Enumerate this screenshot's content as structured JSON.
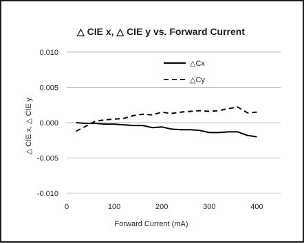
{
  "chart_data": {
    "type": "line",
    "title": "△ CIE x, △ CIE y vs. Forward Current",
    "xlabel": "Forward Current (mA)",
    "ylabel": "△ CIE x, △ CIE y",
    "xlim": [
      0,
      450
    ],
    "ylim": [
      -0.01,
      0.01
    ],
    "x_ticks": [
      0,
      100,
      200,
      300,
      400
    ],
    "x_tick_labels": [
      "0",
      "100",
      "200",
      "300",
      "400"
    ],
    "y_ticks": [
      0.01,
      0.005,
      0.0,
      -0.005,
      -0.01
    ],
    "y_tick_labels": [
      "0.010",
      "0.005",
      "0.000",
      "-0.005",
      "-0.010"
    ],
    "grid": "horizontal",
    "legend_position": "top-right",
    "colors": {
      "series": "#000000",
      "grid": "#bfbfbf",
      "border": "#1a1a1a"
    },
    "series": [
      {
        "name": "△Cx",
        "style": "solid",
        "x": [
          20,
          40,
          60,
          80,
          100,
          120,
          140,
          160,
          180,
          200,
          220,
          240,
          260,
          280,
          300,
          320,
          340,
          360,
          380,
          400
        ],
        "y": [
          0.0,
          -0.0001,
          -0.0001,
          -0.0002,
          -0.0002,
          -0.0003,
          -0.0004,
          -0.0004,
          -0.0007,
          -0.0006,
          -0.0009,
          -0.001,
          -0.001,
          -0.0011,
          -0.0014,
          -0.0014,
          -0.0013,
          -0.0013,
          -0.0018,
          -0.002
        ]
      },
      {
        "name": "△Cy",
        "style": "dashed",
        "x": [
          20,
          40,
          60,
          80,
          100,
          120,
          140,
          160,
          180,
          200,
          220,
          240,
          260,
          280,
          300,
          320,
          340,
          360,
          380,
          400
        ],
        "y": [
          -0.0012,
          -0.0005,
          0.0002,
          0.0004,
          0.0005,
          0.0006,
          0.001,
          0.0012,
          0.0011,
          0.0015,
          0.0013,
          0.0015,
          0.0016,
          0.0017,
          0.0016,
          0.0017,
          0.002,
          0.0022,
          0.0014,
          0.0015
        ]
      }
    ]
  }
}
